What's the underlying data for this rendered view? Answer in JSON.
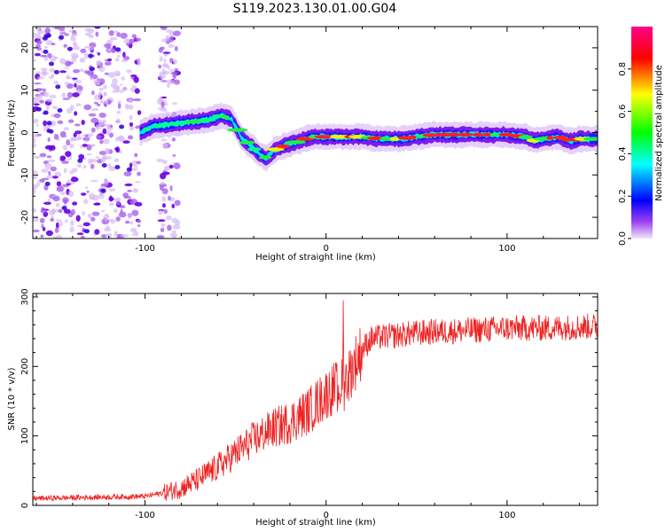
{
  "figure": {
    "title": "S119.2023.130.01.00.G04"
  },
  "chart_data": [
    {
      "type": "heatmap",
      "xlabel": "Height of straight line (km)",
      "ylabel": "Frequency (Hz)",
      "xlim": [
        -162,
        150
      ],
      "ylim": [
        -25,
        25
      ],
      "xticks": [
        -100,
        0,
        100
      ],
      "yticks": [
        -20,
        -10,
        0,
        10,
        20
      ],
      "colorbar": {
        "label": "Normalized spectral amplitude",
        "range": [
          0.0,
          1.0
        ],
        "ticks": [
          0.0,
          0.2,
          0.4,
          0.6,
          0.8
        ],
        "colormap": [
          "#e8d8f8",
          "#6e00e6",
          "#0000ff",
          "#00ffff",
          "#00ff00",
          "#ffff00",
          "#ff0000",
          "#ff0088"
        ]
      },
      "ridge": {
        "x": [
          -103,
          -95,
          -85,
          -75,
          -65,
          -58,
          -52,
          -47,
          -42,
          -37,
          -33,
          -28,
          -22,
          -15,
          -8,
          0,
          10,
          20,
          30,
          40,
          50,
          60,
          70,
          80,
          90,
          100,
          110,
          115,
          120,
          128,
          135,
          140,
          150
        ],
        "y": [
          0,
          1.5,
          2,
          2.5,
          3,
          4,
          3,
          -1,
          -3,
          -5,
          -6,
          -4,
          -3,
          -2,
          -1,
          -1,
          -1,
          -1,
          -1.5,
          -1.5,
          -1,
          -0.5,
          -0.5,
          -0.5,
          -0.5,
          -0.5,
          -1,
          -2,
          -1.5,
          -1,
          -2,
          -1.5,
          -1.5
        ]
      },
      "noise_region_x": [
        -162,
        -82
      ],
      "grid": false
    },
    {
      "type": "line",
      "xlabel": "Height of straight line (km)",
      "ylabel": "SNR (10 * v/v)",
      "xlim": [
        -162,
        150
      ],
      "ylim": [
        0,
        305
      ],
      "xticks": [
        -100,
        0,
        100
      ],
      "yticks": [
        0,
        100,
        200,
        300
      ],
      "color": "#ee2222",
      "trend": {
        "x": [
          -162,
          -100,
          -90,
          -80,
          -70,
          -60,
          -50,
          -40,
          -30,
          -20,
          -10,
          0,
          5,
          10,
          15,
          20,
          25,
          30,
          40,
          50,
          60,
          80,
          100,
          120,
          150
        ],
        "y": [
          10,
          13,
          18,
          25,
          38,
          55,
          75,
          95,
          110,
          120,
          135,
          160,
          170,
          175,
          200,
          225,
          240,
          242,
          245,
          248,
          250,
          252,
          255,
          255,
          258
        ]
      },
      "grid": false
    }
  ]
}
